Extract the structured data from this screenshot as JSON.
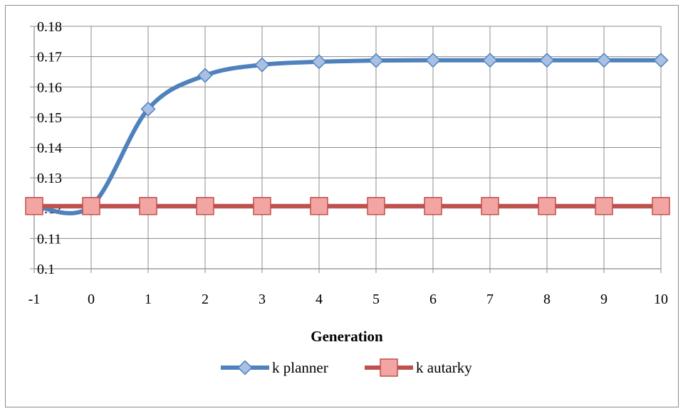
{
  "chart_data": {
    "type": "line",
    "title": "",
    "xlabel": "Generation",
    "ylabel": "",
    "x": [
      -1,
      0,
      1,
      2,
      3,
      4,
      5,
      6,
      7,
      8,
      9,
      10
    ],
    "xlim": [
      -1,
      10
    ],
    "ylim": [
      0.1,
      0.18
    ],
    "yticks": [
      0.1,
      0.11,
      0.12,
      0.13,
      0.14,
      0.15,
      0.16,
      0.17,
      0.18
    ],
    "ytick_labels": [
      "0.1",
      "0.11",
      "0.12",
      "0.13",
      "0.14",
      "0.15",
      "0.16",
      "0.17",
      "0.18"
    ],
    "xtick_labels": [
      "-1",
      "0",
      "1",
      "2",
      "3",
      "4",
      "5",
      "6",
      "7",
      "8",
      "9",
      "10"
    ],
    "grid": true,
    "legend_position": "bottom",
    "series": [
      {
        "name": "k planner",
        "values": [
          0.1207,
          0.1207,
          0.1527,
          0.1638,
          0.1673,
          0.1683,
          0.1687,
          0.1688,
          0.1688,
          0.1688,
          0.1688,
          0.1688
        ],
        "color": "#4f81bd",
        "marker_color": "#a7c0e3",
        "marker": "diamond",
        "smooth": true
      },
      {
        "name": "k autarky",
        "values": [
          0.1207,
          0.1207,
          0.1207,
          0.1207,
          0.1207,
          0.1207,
          0.1207,
          0.1207,
          0.1207,
          0.1207,
          0.1207,
          0.1207
        ],
        "color": "#c0504d",
        "marker_color": "#f2a5a3",
        "marker": "square",
        "smooth": false
      }
    ]
  }
}
